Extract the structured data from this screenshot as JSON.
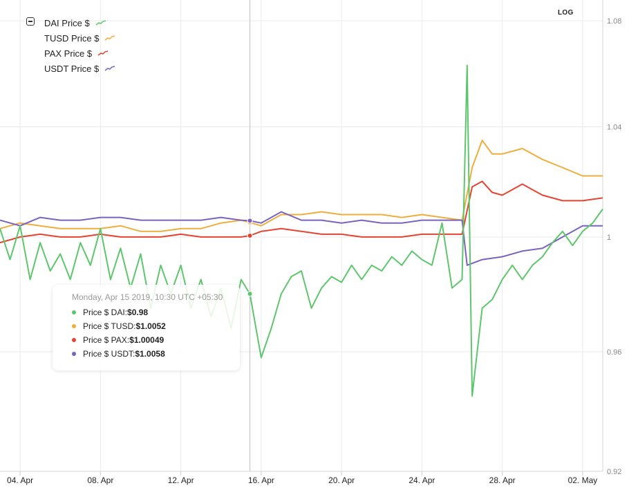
{
  "chart_data": {
    "type": "line",
    "title": "",
    "xlabel": "",
    "ylabel": "",
    "y_scale": "log",
    "ylim": [
      0.92,
      1.08
    ],
    "xlim": [
      "2019-04-03",
      "2019-05-03"
    ],
    "y_ticks": [
      "1.08",
      "1.04",
      "1",
      "0.96",
      "0.92"
    ],
    "x_ticks": [
      {
        "label": "04. Apr",
        "date": "2019-04-04"
      },
      {
        "label": "08. Apr",
        "date": "2019-04-08"
      },
      {
        "label": "12. Apr",
        "date": "2019-04-12"
      },
      {
        "label": "16. Apr",
        "date": "2019-04-16"
      },
      {
        "label": "20. Apr",
        "date": "2019-04-20"
      },
      {
        "label": "24. Apr",
        "date": "2019-04-24"
      },
      {
        "label": "28. Apr",
        "date": "2019-04-28"
      },
      {
        "label": "02. May",
        "date": "2019-05-02"
      }
    ],
    "grid": true,
    "legend_position": "top-left",
    "series": [
      {
        "name": "DAI Price $",
        "color": "#5cc66b",
        "points": [
          [
            "2019-04-03",
            1.003
          ],
          [
            "2019-04-03 12:00",
            0.992
          ],
          [
            "2019-04-04",
            1.004
          ],
          [
            "2019-04-04 12:00",
            0.985
          ],
          [
            "2019-04-05",
            0.998
          ],
          [
            "2019-04-05 12:00",
            0.988
          ],
          [
            "2019-04-06",
            0.994
          ],
          [
            "2019-04-06 12:00",
            0.985
          ],
          [
            "2019-04-07",
            0.998
          ],
          [
            "2019-04-07 12:00",
            0.99
          ],
          [
            "2019-04-08",
            1.003
          ],
          [
            "2019-04-08 12:00",
            0.985
          ],
          [
            "2019-04-09",
            0.996
          ],
          [
            "2019-04-09 12:00",
            0.982
          ],
          [
            "2019-04-10",
            0.994
          ],
          [
            "2019-04-10 12:00",
            0.975
          ],
          [
            "2019-04-11",
            0.99
          ],
          [
            "2019-04-11 12:00",
            0.98
          ],
          [
            "2019-04-12",
            0.99
          ],
          [
            "2019-04-12 12:00",
            0.975
          ],
          [
            "2019-04-13",
            0.985
          ],
          [
            "2019-04-13 12:00",
            0.972
          ],
          [
            "2019-04-14",
            0.982
          ],
          [
            "2019-04-14 12:00",
            0.968
          ],
          [
            "2019-04-15",
            0.985
          ],
          [
            "2019-04-15 10:30",
            0.98
          ],
          [
            "2019-04-16",
            0.958
          ],
          [
            "2019-04-16 12:00",
            0.968
          ],
          [
            "2019-04-17",
            0.98
          ],
          [
            "2019-04-17 12:00",
            0.986
          ],
          [
            "2019-04-18",
            0.988
          ],
          [
            "2019-04-18 12:00",
            0.975
          ],
          [
            "2019-04-19",
            0.982
          ],
          [
            "2019-04-19 12:00",
            0.986
          ],
          [
            "2019-04-20",
            0.984
          ],
          [
            "2019-04-20 12:00",
            0.99
          ],
          [
            "2019-04-21",
            0.985
          ],
          [
            "2019-04-21 12:00",
            0.99
          ],
          [
            "2019-04-22",
            0.988
          ],
          [
            "2019-04-22 12:00",
            0.993
          ],
          [
            "2019-04-23",
            0.99
          ],
          [
            "2019-04-23 12:00",
            0.995
          ],
          [
            "2019-04-24",
            0.992
          ],
          [
            "2019-04-24 12:00",
            0.99
          ],
          [
            "2019-04-25",
            1.005
          ],
          [
            "2019-04-25 12:00",
            0.982
          ],
          [
            "2019-04-26",
            0.985
          ],
          [
            "2019-04-26 06:00",
            1.063
          ],
          [
            "2019-04-26 12:00",
            0.945
          ],
          [
            "2019-04-27",
            0.975
          ],
          [
            "2019-04-27 12:00",
            0.978
          ],
          [
            "2019-04-28",
            0.985
          ],
          [
            "2019-04-28 12:00",
            0.99
          ],
          [
            "2019-04-29",
            0.985
          ],
          [
            "2019-04-29 12:00",
            0.99
          ],
          [
            "2019-04-30",
            0.993
          ],
          [
            "2019-04-30 12:00",
            0.998
          ],
          [
            "2019-05-01",
            1.002
          ],
          [
            "2019-05-01 12:00",
            0.997
          ],
          [
            "2019-05-02",
            1.002
          ],
          [
            "2019-05-02 12:00",
            1.005
          ],
          [
            "2019-05-03",
            1.01
          ]
        ]
      },
      {
        "name": "TUSD Price $",
        "color": "#efad3c",
        "points": [
          [
            "2019-04-03",
            1.003
          ],
          [
            "2019-04-04",
            1.005
          ],
          [
            "2019-04-05",
            1.004
          ],
          [
            "2019-04-06",
            1.003
          ],
          [
            "2019-04-07",
            1.003
          ],
          [
            "2019-04-08",
            1.003
          ],
          [
            "2019-04-09",
            1.004
          ],
          [
            "2019-04-10",
            1.002
          ],
          [
            "2019-04-11",
            1.002
          ],
          [
            "2019-04-12",
            1.003
          ],
          [
            "2019-04-13",
            1.003
          ],
          [
            "2019-04-14",
            1.005
          ],
          [
            "2019-04-15",
            1.006
          ],
          [
            "2019-04-15 10:30",
            1.0052
          ],
          [
            "2019-04-16",
            1.004
          ],
          [
            "2019-04-17",
            1.008
          ],
          [
            "2019-04-18",
            1.008
          ],
          [
            "2019-04-19",
            1.009
          ],
          [
            "2019-04-20",
            1.008
          ],
          [
            "2019-04-21",
            1.008
          ],
          [
            "2019-04-22",
            1.008
          ],
          [
            "2019-04-23",
            1.007
          ],
          [
            "2019-04-24",
            1.008
          ],
          [
            "2019-04-25",
            1.007
          ],
          [
            "2019-04-26",
            1.006
          ],
          [
            "2019-04-26 12:00",
            1.025
          ],
          [
            "2019-04-27",
            1.035
          ],
          [
            "2019-04-27 12:00",
            1.03
          ],
          [
            "2019-04-28",
            1.03
          ],
          [
            "2019-04-29",
            1.032
          ],
          [
            "2019-04-30",
            1.028
          ],
          [
            "2019-05-01",
            1.025
          ],
          [
            "2019-05-02",
            1.022
          ],
          [
            "2019-05-03",
            1.022
          ]
        ]
      },
      {
        "name": "PAX Price $",
        "color": "#e5432f",
        "points": [
          [
            "2019-04-03",
            0.998
          ],
          [
            "2019-04-04",
            1.0
          ],
          [
            "2019-04-05",
            1.001
          ],
          [
            "2019-04-06",
            1.0
          ],
          [
            "2019-04-07",
            1.0
          ],
          [
            "2019-04-08",
            1.001
          ],
          [
            "2019-04-09",
            1.0
          ],
          [
            "2019-04-10",
            1.0
          ],
          [
            "2019-04-11",
            1.0
          ],
          [
            "2019-04-12",
            1.001
          ],
          [
            "2019-04-13",
            1.0
          ],
          [
            "2019-04-14",
            1.0
          ],
          [
            "2019-04-15",
            1.0
          ],
          [
            "2019-04-15 10:30",
            1.00049
          ],
          [
            "2019-04-16",
            1.002
          ],
          [
            "2019-04-17",
            1.003
          ],
          [
            "2019-04-18",
            1.002
          ],
          [
            "2019-04-19",
            1.001
          ],
          [
            "2019-04-20",
            1.001
          ],
          [
            "2019-04-21",
            1.0
          ],
          [
            "2019-04-22",
            1.0
          ],
          [
            "2019-04-23",
            1.0
          ],
          [
            "2019-04-24",
            1.001
          ],
          [
            "2019-04-25",
            1.001
          ],
          [
            "2019-04-26",
            1.001
          ],
          [
            "2019-04-26 12:00",
            1.018
          ],
          [
            "2019-04-27",
            1.02
          ],
          [
            "2019-04-27 12:00",
            1.016
          ],
          [
            "2019-04-28",
            1.015
          ],
          [
            "2019-04-29",
            1.019
          ],
          [
            "2019-04-30",
            1.015
          ],
          [
            "2019-05-01",
            1.013
          ],
          [
            "2019-05-02",
            1.013
          ],
          [
            "2019-05-03",
            1.014
          ]
        ]
      },
      {
        "name": "USDT Price $",
        "color": "#7a62bd",
        "points": [
          [
            "2019-04-03",
            1.006
          ],
          [
            "2019-04-04",
            1.004
          ],
          [
            "2019-04-05",
            1.007
          ],
          [
            "2019-04-06",
            1.006
          ],
          [
            "2019-04-07",
            1.006
          ],
          [
            "2019-04-08",
            1.007
          ],
          [
            "2019-04-09",
            1.007
          ],
          [
            "2019-04-10",
            1.006
          ],
          [
            "2019-04-11",
            1.006
          ],
          [
            "2019-04-12",
            1.006
          ],
          [
            "2019-04-13",
            1.006
          ],
          [
            "2019-04-14",
            1.007
          ],
          [
            "2019-04-15",
            1.006
          ],
          [
            "2019-04-15 10:30",
            1.0058
          ],
          [
            "2019-04-16",
            1.005
          ],
          [
            "2019-04-17",
            1.009
          ],
          [
            "2019-04-18",
            1.006
          ],
          [
            "2019-04-19",
            1.006
          ],
          [
            "2019-04-20",
            1.005
          ],
          [
            "2019-04-21",
            1.006
          ],
          [
            "2019-04-22",
            1.005
          ],
          [
            "2019-04-23",
            1.005
          ],
          [
            "2019-04-24",
            1.006
          ],
          [
            "2019-04-25",
            1.006
          ],
          [
            "2019-04-26",
            1.006
          ],
          [
            "2019-04-26 06:00",
            0.99
          ],
          [
            "2019-04-27",
            0.992
          ],
          [
            "2019-04-28",
            0.993
          ],
          [
            "2019-04-29",
            0.995
          ],
          [
            "2019-04-30",
            0.996
          ],
          [
            "2019-05-01",
            1.0
          ],
          [
            "2019-05-02",
            1.004
          ],
          [
            "2019-05-03",
            1.004
          ]
        ]
      }
    ]
  },
  "legend": {
    "items": [
      {
        "label": "DAI Price $",
        "color": "#5cc66b"
      },
      {
        "label": "TUSD Price $",
        "color": "#efad3c"
      },
      {
        "label": "PAX Price $",
        "color": "#e5432f"
      },
      {
        "label": "USDT Price $",
        "color": "#7a62bd"
      }
    ]
  },
  "log_toggle": "LOG",
  "tooltip": {
    "title": "Monday, Apr 15 2019, 10:30 UTC +05:30",
    "date": "2019-04-15 10:30",
    "rows": [
      {
        "label": "Price $ DAI: ",
        "value": "$0.98",
        "color": "#5cc66b"
      },
      {
        "label": "Price $ TUSD: ",
        "value": "$1.0052",
        "color": "#efad3c"
      },
      {
        "label": "Price $ PAX: ",
        "value": "$1.00049",
        "color": "#e5432f"
      },
      {
        "label": "Price $ USDT: ",
        "value": "$1.0058",
        "color": "#7a62bd"
      }
    ]
  }
}
